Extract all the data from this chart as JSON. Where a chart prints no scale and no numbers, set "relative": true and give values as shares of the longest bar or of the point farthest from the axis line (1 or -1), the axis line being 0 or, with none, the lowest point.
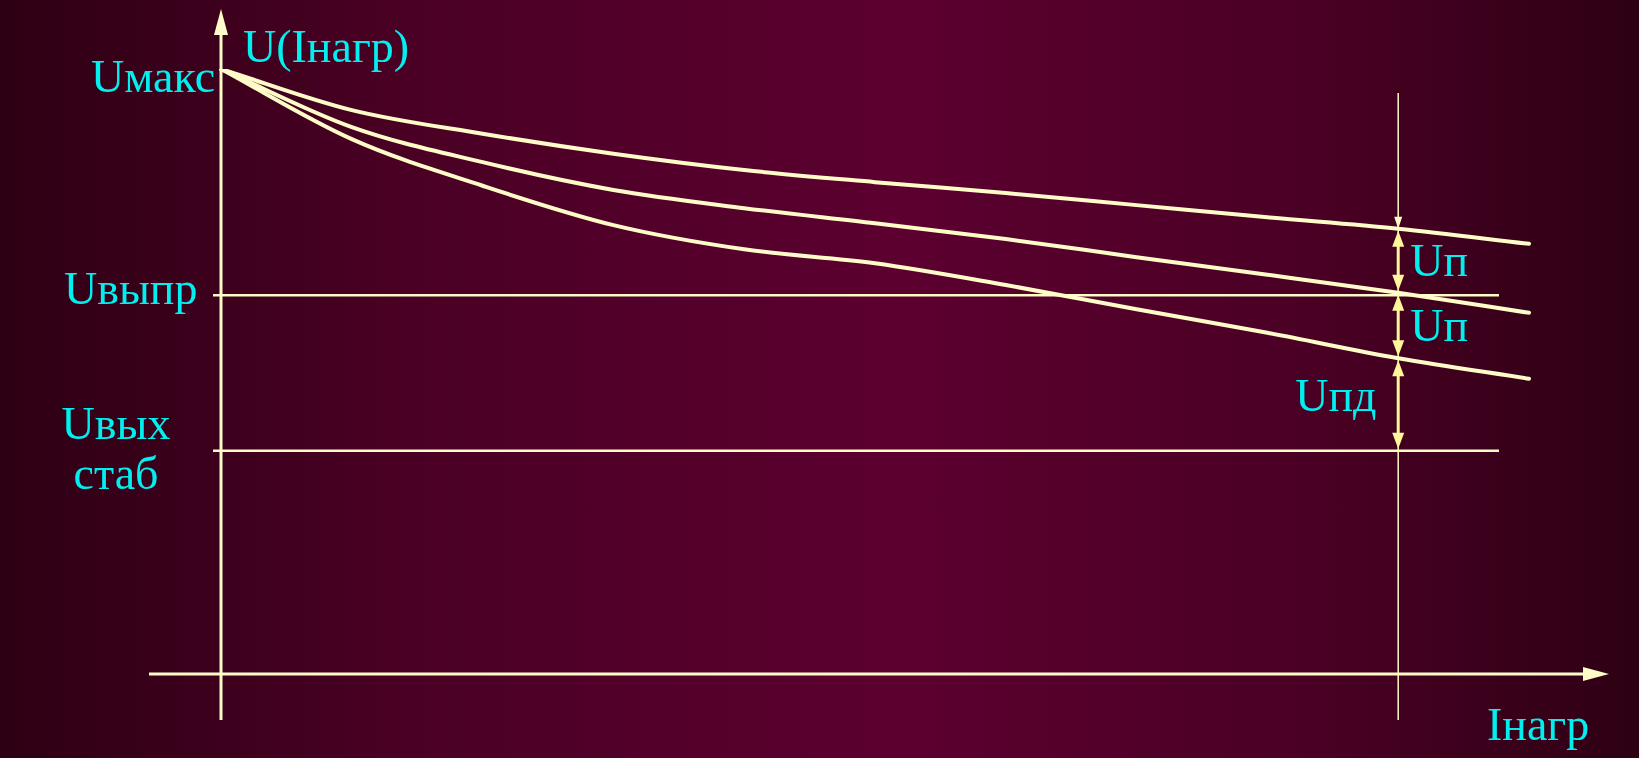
{
  "chart_data": {
    "type": "line",
    "ylabel": "U(Iнагр)",
    "xlabel": "Iнагр",
    "relative": true,
    "tick_labels": false,
    "legend": false,
    "marker": "none",
    "line_style": "solid",
    "categories": [
      null,
      null,
      null,
      null,
      null,
      null,
      null,
      null,
      null,
      null,
      null
    ],
    "series": [
      {
        "color": "#fffcc8",
        "values": [
          1.0,
          0.932,
          0.893,
          0.86,
          0.833,
          0.813,
          0.795,
          0.775,
          0.755,
          0.736,
          0.711
        ]
      },
      {
        "color": "#fffcc8",
        "values": [
          1.0,
          0.904,
          0.846,
          0.8,
          0.77,
          0.745,
          0.719,
          0.689,
          0.66,
          0.63,
          0.597
        ]
      },
      {
        "color": "#fffcc8",
        "values": [
          1.0,
          0.884,
          0.807,
          0.742,
          0.702,
          0.679,
          0.643,
          0.603,
          0.564,
          0.522,
          0.488
        ]
      }
    ],
    "ref_lines": [
      {
        "axis": "y",
        "value": 0.626,
        "label": "Uвыпр",
        "color": "#fffcc8"
      },
      {
        "axis": "y",
        "value": 0.369,
        "label": "Uвых стаб",
        "color": "#fffcc8"
      }
    ],
    "annotations": [
      "Uмакс",
      "Uп",
      "Uп",
      "Uпд"
    ]
  }
}
